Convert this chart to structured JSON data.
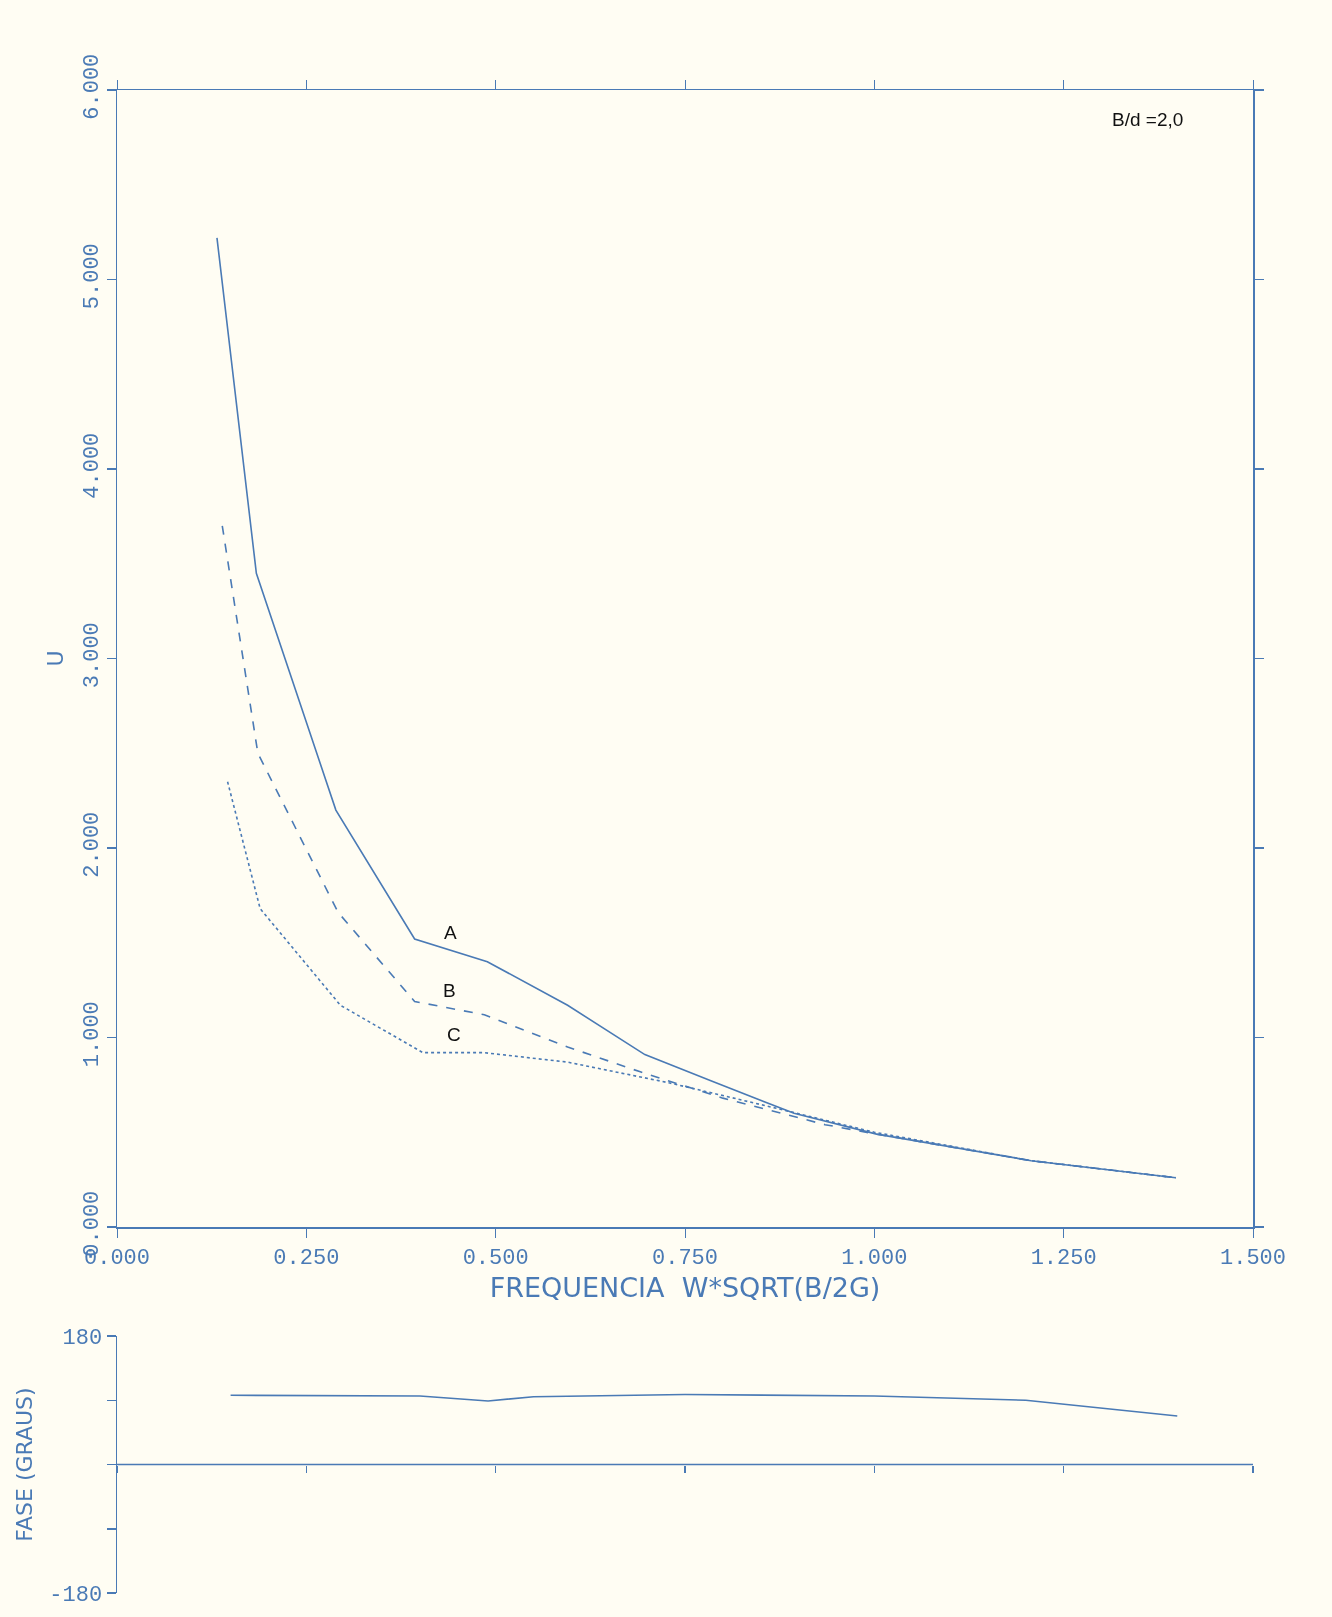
{
  "chart_data": [
    {
      "type": "line",
      "xlabel": "FREQUENCIA  W*SQRT(B/2G)",
      "ylabel": "U",
      "annotations": [
        "B/d =2,0"
      ],
      "xlim": [
        0,
        1.5
      ],
      "xticks": [
        {
          "value": 0,
          "label": "0.000"
        },
        {
          "value": 0.25,
          "label": "0.250"
        },
        {
          "value": 0.5,
          "label": "0.500"
        },
        {
          "value": 0.75,
          "label": "0.750"
        },
        {
          "value": 1,
          "label": "1.000"
        },
        {
          "value": 1.25,
          "label": "1.250"
        },
        {
          "value": 1.5,
          "label": "1.500"
        }
      ],
      "ylim": [
        0,
        6
      ],
      "yticks": [
        {
          "value": 0,
          "label": "0.000"
        },
        {
          "value": 1,
          "label": "1.000"
        },
        {
          "value": 2,
          "label": "2.000"
        },
        {
          "value": 3,
          "label": "3.000"
        },
        {
          "value": 4,
          "label": "4.000"
        },
        {
          "value": 5,
          "label": "5.000"
        },
        {
          "value": 6,
          "label": "6.000"
        }
      ],
      "grid": false,
      "legend": false,
      "marker": "none",
      "series": [
        {
          "name": "A",
          "color": "#4a7ab5",
          "line_style": "solid",
          "x": [
            0.132,
            0.184,
            0.289,
            0.393,
            0.489,
            0.595,
            0.697,
            0.785,
            0.894,
            1.003,
            1.207,
            1.398
          ],
          "values": [
            5.22,
            3.45,
            2.2,
            1.52,
            1.4,
            1.17,
            0.91,
            0.77,
            0.6,
            0.49,
            0.35,
            0.26
          ]
        },
        {
          "name": "B",
          "color": "#4a7ab5",
          "line_style": "dashed",
          "x": [
            0.139,
            0.186,
            0.292,
            0.393,
            0.485,
            0.595,
            0.69,
            0.8,
            0.935,
            1.003,
            1.207,
            1.398
          ],
          "values": [
            3.7,
            2.5,
            1.66,
            1.19,
            1.12,
            0.95,
            0.82,
            0.68,
            0.54,
            0.49,
            0.35,
            0.26
          ]
        },
        {
          "name": "C",
          "color": "#4a7ab5",
          "line_style": "dotted",
          "x": [
            0.146,
            0.189,
            0.295,
            0.404,
            0.485,
            0.595,
            0.73,
            0.867,
            1.0,
            1.207,
            1.398
          ],
          "values": [
            2.35,
            1.68,
            1.17,
            0.92,
            0.92,
            0.87,
            0.76,
            0.63,
            0.5,
            0.35,
            0.26
          ]
        }
      ]
    },
    {
      "type": "line",
      "ylabel": "FASE (GRAUS)",
      "tick_labels": "y",
      "xlim": [
        0,
        1.5
      ],
      "xticks": [
        0,
        0.25,
        0.5,
        0.75,
        1,
        1.25,
        1.5
      ],
      "ylim": [
        -180,
        180
      ],
      "yticks": [
        180,
        {
          "value": 90,
          "label": null
        },
        {
          "value": 0,
          "label": null
        },
        {
          "value": -90,
          "label": null
        },
        -180
      ],
      "grid": false,
      "legend": false,
      "marker": "none",
      "ref_lines": [
        {
          "axis": "y",
          "value": 0,
          "color": "#4a7ab5"
        }
      ],
      "series": [
        {
          "color": "#4a7ab5",
          "line_style": "solid",
          "x": [
            0.15,
            0.4,
            0.49,
            0.55,
            0.75,
            1.0,
            1.2,
            1.4
          ],
          "values": [
            97,
            96,
            89,
            95,
            98,
            96,
            90,
            68
          ]
        }
      ]
    }
  ]
}
